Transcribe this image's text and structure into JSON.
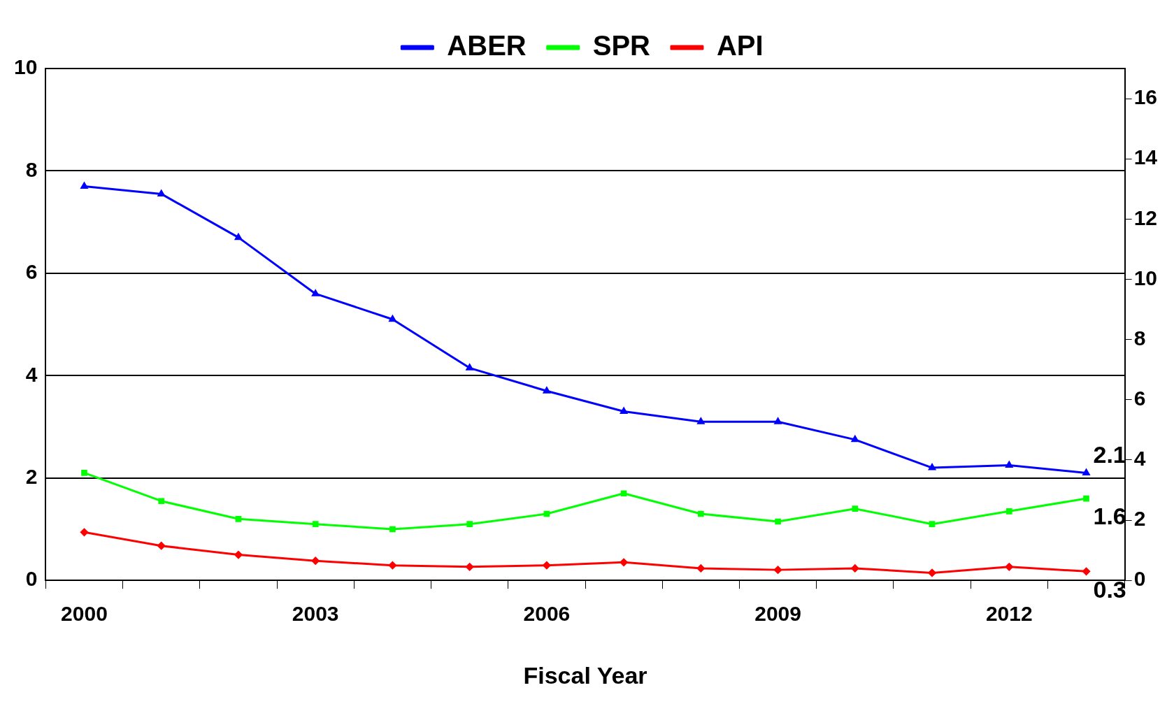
{
  "chart_data": {
    "type": "line",
    "xlabel": "Fiscal Year",
    "categories": [
      "2000",
      null,
      null,
      "2003",
      null,
      null,
      "2006",
      null,
      null,
      "2009",
      null,
      null,
      "2012",
      null
    ],
    "series": [
      {
        "name": "ABER",
        "color": "#0000ff",
        "marker": "triangle",
        "values": [
          7.7,
          7.55,
          6.7,
          5.6,
          5.1,
          4.15,
          3.7,
          3.3,
          3.1,
          3.1,
          2.75,
          2.2,
          2.25,
          2.1
        ],
        "value_labels": [
          null,
          null,
          null,
          null,
          null,
          null,
          null,
          null,
          null,
          null,
          null,
          null,
          null,
          "2.1"
        ]
      },
      {
        "name": "SPR",
        "color": "#00ff00",
        "marker": "square",
        "values": [
          2.1,
          1.55,
          1.2,
          1.1,
          1.0,
          1.1,
          1.3,
          1.7,
          1.3,
          1.15,
          1.4,
          1.1,
          1.35,
          1.6
        ],
        "value_labels": [
          null,
          null,
          null,
          null,
          null,
          null,
          null,
          null,
          null,
          null,
          null,
          null,
          null,
          "1.6"
        ]
      },
      {
        "name": "API",
        "color": "#ff0000",
        "marker": "diamond",
        "axis": "y2",
        "values": [
          1.6,
          1.15,
          0.85,
          0.65,
          0.5,
          0.45,
          0.5,
          0.6,
          0.4,
          0.35,
          0.4,
          0.25,
          0.45,
          0.3
        ],
        "value_labels": [
          null,
          null,
          null,
          null,
          null,
          null,
          null,
          null,
          null,
          null,
          null,
          null,
          null,
          "0.3"
        ]
      }
    ],
    "ylim": [
      0,
      10
    ],
    "yticks": [
      0,
      2,
      4,
      6,
      8,
      10
    ],
    "y2lim": [
      0,
      17
    ],
    "y2ticks": [
      0,
      2,
      4,
      6,
      8,
      10,
      12,
      14,
      16
    ],
    "grid": "y",
    "legend": "top",
    "line_style": "solid"
  }
}
